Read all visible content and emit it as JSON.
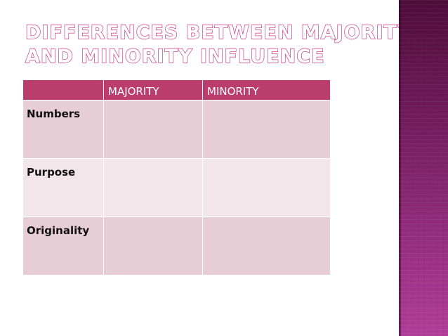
{
  "slide": {
    "title_lines": [
      "DIFFERENCES BETWEEN MAJORITY",
      "AND MINORITY INFLUENCE"
    ]
  },
  "table": {
    "headers": [
      "",
      "MAJORITY",
      "MINORITY"
    ],
    "rows": [
      {
        "label": "Numbers",
        "majority": "",
        "minority": ""
      },
      {
        "label": "Purpose",
        "majority": "",
        "minority": ""
      },
      {
        "label": "Originality",
        "majority": "",
        "minority": ""
      }
    ]
  },
  "theme": {
    "header_color": "#ba3d6c",
    "row_color_dark": "#e7ced6",
    "row_color_light": "#f2e6ea",
    "title_outline_color": "#c93a86",
    "side_band_color": "#8f2b79"
  }
}
